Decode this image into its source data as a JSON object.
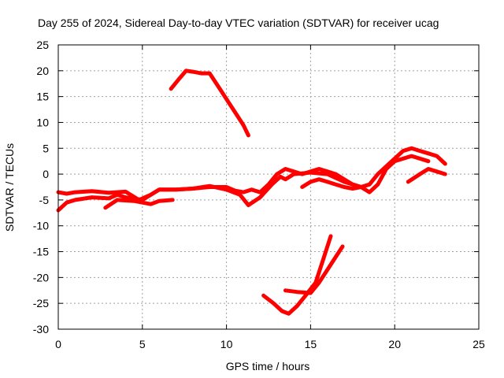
{
  "chart_data": {
    "type": "line",
    "title": "Day 255 of 2024, Sidereal Day-to-day VTEC variation (SDTVAR) for receiver ucag",
    "xlabel": "GPS time / hours",
    "ylabel": "SDTVAR / TECUs",
    "xlim": [
      0,
      25
    ],
    "ylim": [
      -30,
      25
    ],
    "xticks": [
      "0",
      "5",
      "10",
      "15",
      "20",
      "25"
    ],
    "xtick_values": [
      0,
      5,
      10,
      15,
      20,
      25
    ],
    "yticks": [
      "25",
      "20",
      "15",
      "10",
      "5",
      "0",
      "-5",
      "-10",
      "-15",
      "-20",
      "-25",
      "-30"
    ],
    "ytick_values": [
      25,
      20,
      15,
      10,
      5,
      0,
      -5,
      -10,
      -15,
      -20,
      -25,
      -30
    ],
    "grid": true,
    "color": "#ff0000",
    "series": [
      {
        "name": "track-main-1",
        "x": [
          0,
          0.5,
          1,
          2,
          3,
          4,
          4.8,
          5.5,
          6,
          7,
          8,
          9,
          10,
          10.5,
          11,
          11.5,
          12,
          12.5,
          13,
          13.5,
          14,
          14.5,
          15,
          15.5,
          16,
          16.5,
          17,
          17.5,
          18,
          18.5,
          19,
          19.5,
          20,
          20.5,
          21,
          21.5,
          22,
          22.5,
          23
        ],
        "y": [
          -3.5,
          -3.8,
          -3.5,
          -3.3,
          -3.6,
          -3.4,
          -5,
          -4,
          -3,
          -3,
          -2.8,
          -2.5,
          -2.5,
          -3.2,
          -3.5,
          -3,
          -3.5,
          -2,
          0,
          1,
          0.5,
          0,
          0.5,
          1,
          0.5,
          0,
          -1,
          -2,
          -2.5,
          -2,
          0,
          1.5,
          3,
          4.5,
          5,
          4.5,
          4,
          3.5,
          2
        ]
      },
      {
        "name": "track-main-2",
        "x": [
          0,
          0.5,
          1,
          2,
          3,
          3.5,
          4,
          5,
          6,
          7,
          8,
          9,
          10,
          10.8,
          11.3,
          12,
          12.7,
          13.2,
          13.5,
          14,
          15,
          16,
          17,
          18,
          18.5,
          19,
          19.5,
          20,
          21,
          22
        ],
        "y": [
          -7,
          -5.5,
          -5,
          -4.5,
          -4.7,
          -4,
          -4.5,
          -5,
          -3,
          -3,
          -2.8,
          -2.3,
          -3,
          -4,
          -6,
          -4.5,
          -2,
          -0.5,
          -1,
          0,
          0.3,
          0,
          -1.5,
          -2.5,
          -3.5,
          -2,
          1,
          2.5,
          3.5,
          2.5
        ]
      },
      {
        "name": "track-main-3",
        "x": [
          2.8,
          3.5,
          4.5,
          5.5,
          6,
          6.8
        ],
        "y": [
          -6.5,
          -5,
          -5.2,
          -5.8,
          -5.2,
          -5
        ]
      },
      {
        "name": "track-main-4",
        "x": [
          14.5,
          15,
          15.5,
          16,
          16.5,
          17,
          17.5,
          18
        ],
        "y": [
          -2.5,
          -1.5,
          -1,
          -1.5,
          -2,
          -2.5,
          -2.8,
          -2.5
        ]
      },
      {
        "name": "track-main-5",
        "x": [
          20.8,
          21.5,
          22,
          22.5,
          23
        ],
        "y": [
          -1.5,
          0,
          1,
          0.5,
          0
        ]
      },
      {
        "name": "track-high",
        "x": [
          6.7,
          7.2,
          7.6,
          8,
          8.5,
          9,
          9.3,
          9.6,
          10,
          10.5,
          11,
          11.3
        ],
        "y": [
          16.5,
          18.5,
          20,
          19.8,
          19.5,
          19.5,
          18,
          16.5,
          14.5,
          12,
          9.5,
          7.5
        ]
      },
      {
        "name": "track-low-1",
        "x": [
          12.2,
          12.8,
          13.3,
          13.7,
          14.2,
          14.7,
          15.3,
          15.8,
          16.2
        ],
        "y": [
          -23.5,
          -25,
          -26.5,
          -27,
          -25.5,
          -23.5,
          -21,
          -16,
          -12
        ]
      },
      {
        "name": "track-low-2",
        "x": [
          13.5,
          14.2,
          15,
          15.5,
          16,
          16.5,
          16.9
        ],
        "y": [
          -22.5,
          -22.8,
          -23,
          -21,
          -18.5,
          -16,
          -14
        ]
      }
    ]
  }
}
